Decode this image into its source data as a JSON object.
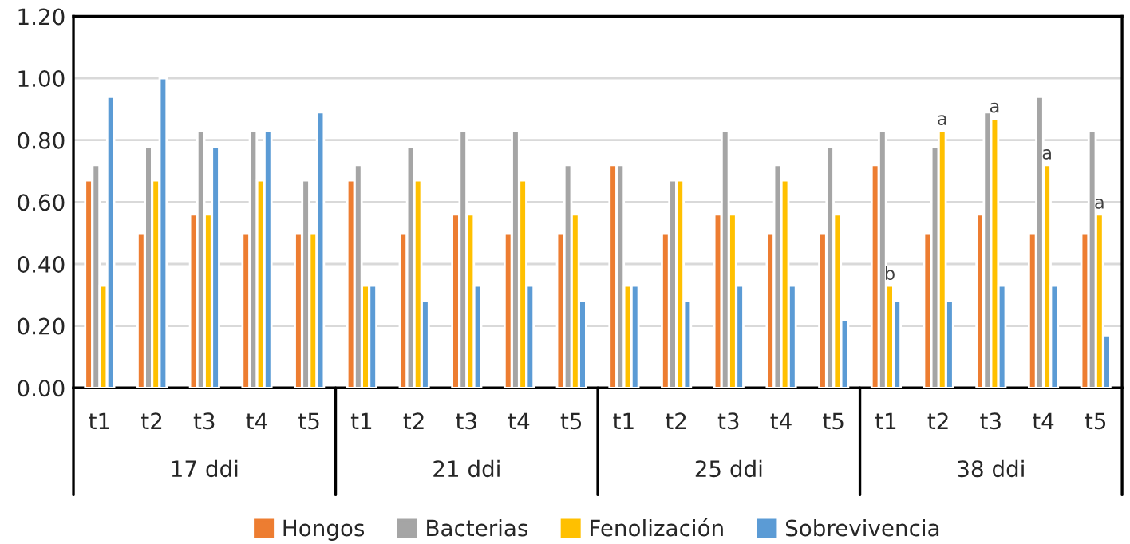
{
  "chart_data": {
    "type": "bar",
    "categories": [
      "t1",
      "t2",
      "t3",
      "t4",
      "t5",
      "t1",
      "t2",
      "t3",
      "t4",
      "t5",
      "t1",
      "t2",
      "t3",
      "t4",
      "t5",
      "t1",
      "t2",
      "t3",
      "t4",
      "t5"
    ],
    "series": [
      {
        "name": "Hongos",
        "color": "#ed7d31",
        "values": [
          0.67,
          0.5,
          0.56,
          0.5,
          0.5,
          0.67,
          0.5,
          0.56,
          0.5,
          0.5,
          0.72,
          0.5,
          0.56,
          0.5,
          0.5,
          0.72,
          0.5,
          0.56,
          0.5,
          0.5
        ]
      },
      {
        "name": "Bacterias",
        "color": "#a5a5a5",
        "values": [
          0.72,
          0.78,
          0.83,
          0.83,
          0.67,
          0.72,
          0.78,
          0.83,
          0.83,
          0.72,
          0.72,
          0.67,
          0.83,
          0.72,
          0.78,
          0.83,
          0.78,
          0.89,
          0.94,
          0.83
        ]
      },
      {
        "name": "Fenolización",
        "color": "#ffc000",
        "values": [
          0.33,
          0.67,
          0.56,
          0.67,
          0.5,
          0.33,
          0.67,
          0.56,
          0.67,
          0.56,
          0.33,
          0.67,
          0.56,
          0.67,
          0.56,
          0.33,
          0.83,
          0.87,
          0.72,
          0.56
        ],
        "value_labels": [
          null,
          null,
          null,
          null,
          null,
          null,
          null,
          null,
          null,
          null,
          null,
          null,
          null,
          null,
          null,
          "b",
          "a",
          "a",
          "a",
          "a"
        ]
      },
      {
        "name": "Sobrevivencia",
        "color": "#5b9bd5",
        "values": [
          0.94,
          1.0,
          0.78,
          0.83,
          0.89,
          0.33,
          0.28,
          0.33,
          0.33,
          0.28,
          0.33,
          0.28,
          0.33,
          0.33,
          0.22,
          0.28,
          0.28,
          0.33,
          0.33,
          0.17
        ]
      }
    ],
    "annotations": [
      "17 ddi",
      "21 ddi",
      "25 ddi",
      "38 ddi"
    ],
    "ylim": [
      0,
      1.2
    ],
    "yticks": [
      {
        "value": 0,
        "label": "0.00"
      },
      {
        "value": 0.2,
        "label": "0.20"
      },
      {
        "value": 0.4,
        "label": "0.40"
      },
      {
        "value": 0.6,
        "label": "0.60"
      },
      {
        "value": 0.8,
        "label": "0.80"
      },
      {
        "value": 1.0,
        "label": "1.00"
      },
      {
        "value": 1.2,
        "label": "1.20"
      }
    ],
    "grid": "y",
    "legend": "bottom"
  }
}
